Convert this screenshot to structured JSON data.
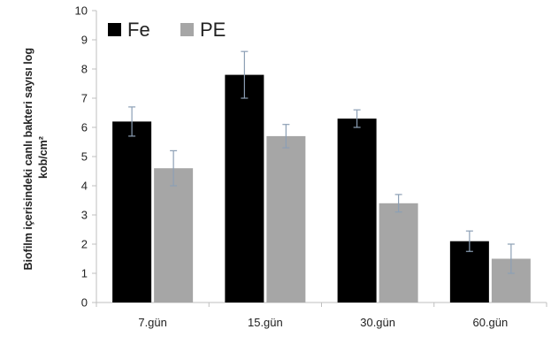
{
  "chart_data": {
    "type": "bar",
    "categories": [
      "7.gün",
      "15.gün",
      "30.gün",
      "60.gün"
    ],
    "series": [
      {
        "name": "Fe",
        "color": "#000000",
        "values": [
          6.2,
          7.8,
          6.3,
          2.1
        ],
        "errors": [
          0.5,
          0.8,
          0.3,
          0.35
        ]
      },
      {
        "name": "PE",
        "color": "#a6a6a6",
        "values": [
          4.6,
          5.7,
          3.4,
          1.5
        ],
        "errors": [
          0.6,
          0.4,
          0.3,
          0.5
        ]
      }
    ],
    "ylabel_line1": "Biofilm içerisindeki canlı bakteri sayısı log",
    "ylabel_line2": "kob/cm²",
    "ylim": [
      0,
      10
    ],
    "yticks": [
      0,
      1,
      2,
      3,
      4,
      5,
      6,
      7,
      8,
      9,
      10
    ],
    "legend_position": "top-left",
    "grid": false,
    "axis_color": "#bfbfbf",
    "errorbar_color": "#8c9fb5"
  }
}
